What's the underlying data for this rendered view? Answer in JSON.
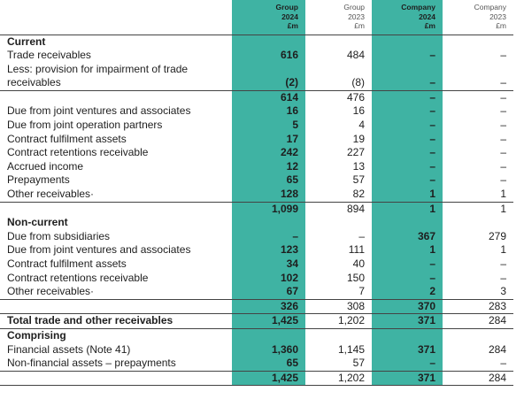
{
  "header": {
    "columns": [
      {
        "lines": [
          "Group",
          "2024",
          "£m"
        ],
        "highlight": true
      },
      {
        "lines": [
          "Group",
          "2023",
          "£m"
        ],
        "highlight": false
      },
      {
        "lines": [
          "Company",
          "2024",
          "£m"
        ],
        "highlight": true
      },
      {
        "lines": [
          "Company",
          "2023",
          "£m"
        ],
        "highlight": false
      }
    ]
  },
  "table": {
    "rows": [
      {
        "label": "Current"
      },
      {
        "label": "Trade receivables",
        "cells": [
          "616",
          "484",
          "–",
          "–"
        ]
      },
      {
        "label": "Less: provision for impairment of trade receivables",
        "cells": [
          "(2)",
          "(8)",
          "–",
          "–"
        ]
      },
      {
        "cells": [
          "614",
          "476",
          "–",
          "–"
        ]
      },
      {
        "label": "Due from joint ventures and associates",
        "cells": [
          "16",
          "16",
          "–",
          "–"
        ]
      },
      {
        "label": "Due from joint operation partners",
        "cells": [
          "5",
          "4",
          "–",
          "–"
        ]
      },
      {
        "label": "Contract fulfilment assets",
        "cells": [
          "17",
          "19",
          "–",
          "–"
        ]
      },
      {
        "label": "Contract retentions receivable",
        "cells": [
          "242",
          "227",
          "–",
          "–"
        ]
      },
      {
        "label": "Accrued income",
        "cells": [
          "12",
          "13",
          "–",
          "–"
        ]
      },
      {
        "label": "Prepayments",
        "cells": [
          "65",
          "57",
          "–",
          "–"
        ]
      },
      {
        "label": "Other receivables·",
        "cells": [
          "128",
          "82",
          "1",
          "1"
        ]
      },
      {
        "cells": [
          "1,099",
          "894",
          "1",
          "1"
        ]
      },
      {
        "label": "Non-current"
      },
      {
        "label": "Due from subsidiaries",
        "cells": [
          "–",
          "–",
          "367",
          "279"
        ]
      },
      {
        "label": "Due from joint ventures and associates",
        "cells": [
          "123",
          "111",
          "1",
          "1"
        ]
      },
      {
        "label": "Contract fulfilment assets",
        "cells": [
          "34",
          "40",
          "–",
          "–"
        ]
      },
      {
        "label": "Contract retentions receivable",
        "cells": [
          "102",
          "150",
          "–",
          "–"
        ]
      },
      {
        "label": "Other receivables·",
        "cells": [
          "67",
          "7",
          "2",
          "3"
        ]
      },
      {
        "cells": [
          "326",
          "308",
          "370",
          "283"
        ]
      },
      {
        "label": "Total trade and other receivables",
        "cells": [
          "1,425",
          "1,202",
          "371",
          "284"
        ],
        "kind": "total"
      },
      {
        "label": "Comprising"
      },
      {
        "label": "Financial assets (Note 41)",
        "cells": [
          "1,360",
          "1,145",
          "371",
          "284"
        ]
      },
      {
        "label": "Non-financial assets – prepayments",
        "cells": [
          "65",
          "57",
          "–",
          "–"
        ]
      },
      {
        "cells": [
          "1,425",
          "1,202",
          "371",
          "284"
        ]
      }
    ]
  }
}
